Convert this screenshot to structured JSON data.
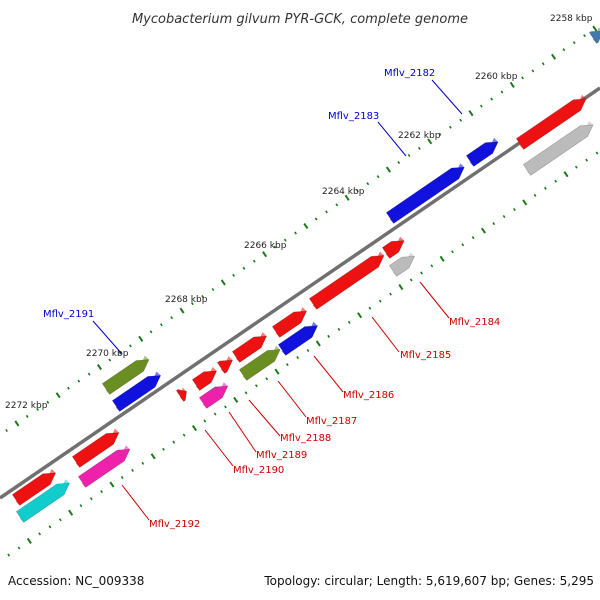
{
  "title": "Mycobacterium gilvum PYR-GCK, complete genome",
  "footer": {
    "accession": "Accession: NC_009338",
    "topology": "Topology: circular; Length: 5,619,607 bp; Genes: 5,295"
  },
  "scale_labels": [
    "2258 kbp",
    "2260 kbp",
    "2262 kbp",
    "2264 kbp",
    "2266 kbp",
    "2268 kbp",
    "2270 kbp",
    "2272 kbp"
  ],
  "gene_labels": [
    {
      "name": "Mflv_2182",
      "color": "#0000cc"
    },
    {
      "name": "Mflv_2183",
      "color": "#0000cc"
    },
    {
      "name": "Mflv_2184",
      "color": "#cc0000"
    },
    {
      "name": "Mflv_2185",
      "color": "#cc0000"
    },
    {
      "name": "Mflv_2186",
      "color": "#cc0000"
    },
    {
      "name": "Mflv_2187",
      "color": "#cc0000"
    },
    {
      "name": "Mflv_2188",
      "color": "#cc0000"
    },
    {
      "name": "Mflv_2189",
      "color": "#cc0000"
    },
    {
      "name": "Mflv_2190",
      "color": "#cc0000"
    },
    {
      "name": "Mflv_2191",
      "color": "#0000cc"
    },
    {
      "name": "Mflv_2192",
      "color": "#cc0000"
    }
  ],
  "colors": {
    "backbone": "#707070",
    "tick": "#1a7a1a",
    "red": "#ee1111",
    "blue": "#1111dd",
    "olive": "#6b8e23",
    "magenta": "#ee22aa",
    "cyan": "#11cccc",
    "gray": "#bbbbbb",
    "steel": "#4477aa"
  }
}
